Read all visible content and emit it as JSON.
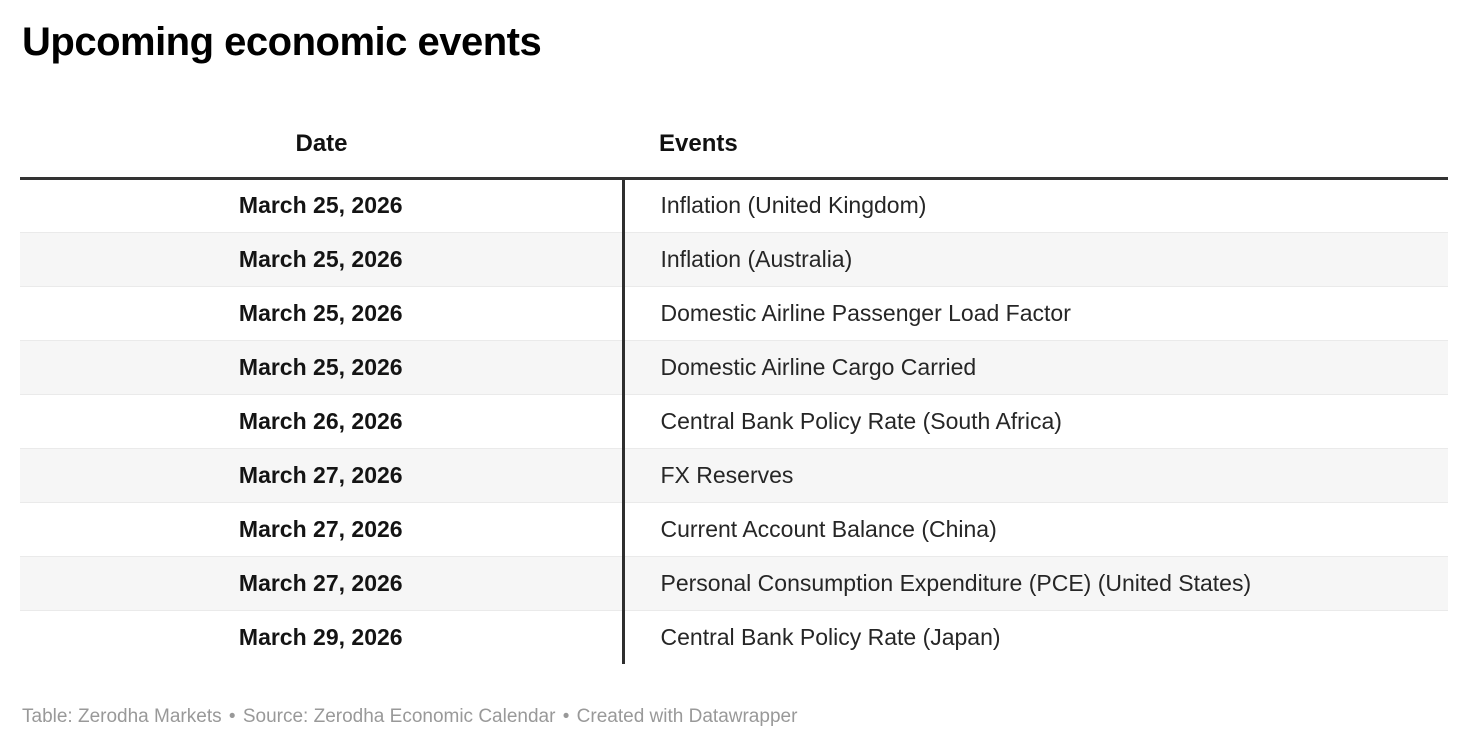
{
  "chart_data": {
    "type": "table",
    "title": "Upcoming economic events",
    "columns": [
      "Date",
      "Events"
    ],
    "rows": [
      [
        "March 25, 2026",
        "Inflation (United Kingdom)"
      ],
      [
        "March 25, 2026",
        "Inflation (Australia)"
      ],
      [
        "March 25, 2026",
        "Domestic Airline Passenger Load Factor"
      ],
      [
        "March 25, 2026",
        "Domestic Airline Cargo Carried"
      ],
      [
        "March 26, 2026",
        "Central Bank Policy Rate (South Africa)"
      ],
      [
        "March 27, 2026",
        "FX Reserves"
      ],
      [
        "March 27, 2026",
        "Current Account Balance (China)"
      ],
      [
        "March 27, 2026",
        "Personal Consumption Expenditure (PCE) (United States)"
      ],
      [
        "March 29, 2026",
        "Central Bank Policy Rate (Japan)"
      ]
    ],
    "layout": {
      "date_column_alignment": "center",
      "events_column_alignment": "left",
      "zebra_striping": true,
      "legend_position": "none",
      "grid": "row-dividers"
    }
  },
  "colors": {
    "header_rule": "#333333",
    "column_divider": "#2e2e2e",
    "row_stripe": "#f6f6f6",
    "row_divider": "#eaeaea",
    "title_text": "#000000",
    "body_text": "#262626",
    "footer_text": "#999999"
  },
  "footer": {
    "table_label": "Table:",
    "table_credit": "Zerodha Markets",
    "separator": "•",
    "source_label": "Source:",
    "source_credit": "Zerodha Economic Calendar",
    "created_label": "Created with",
    "created_credit": "Datawrapper"
  }
}
